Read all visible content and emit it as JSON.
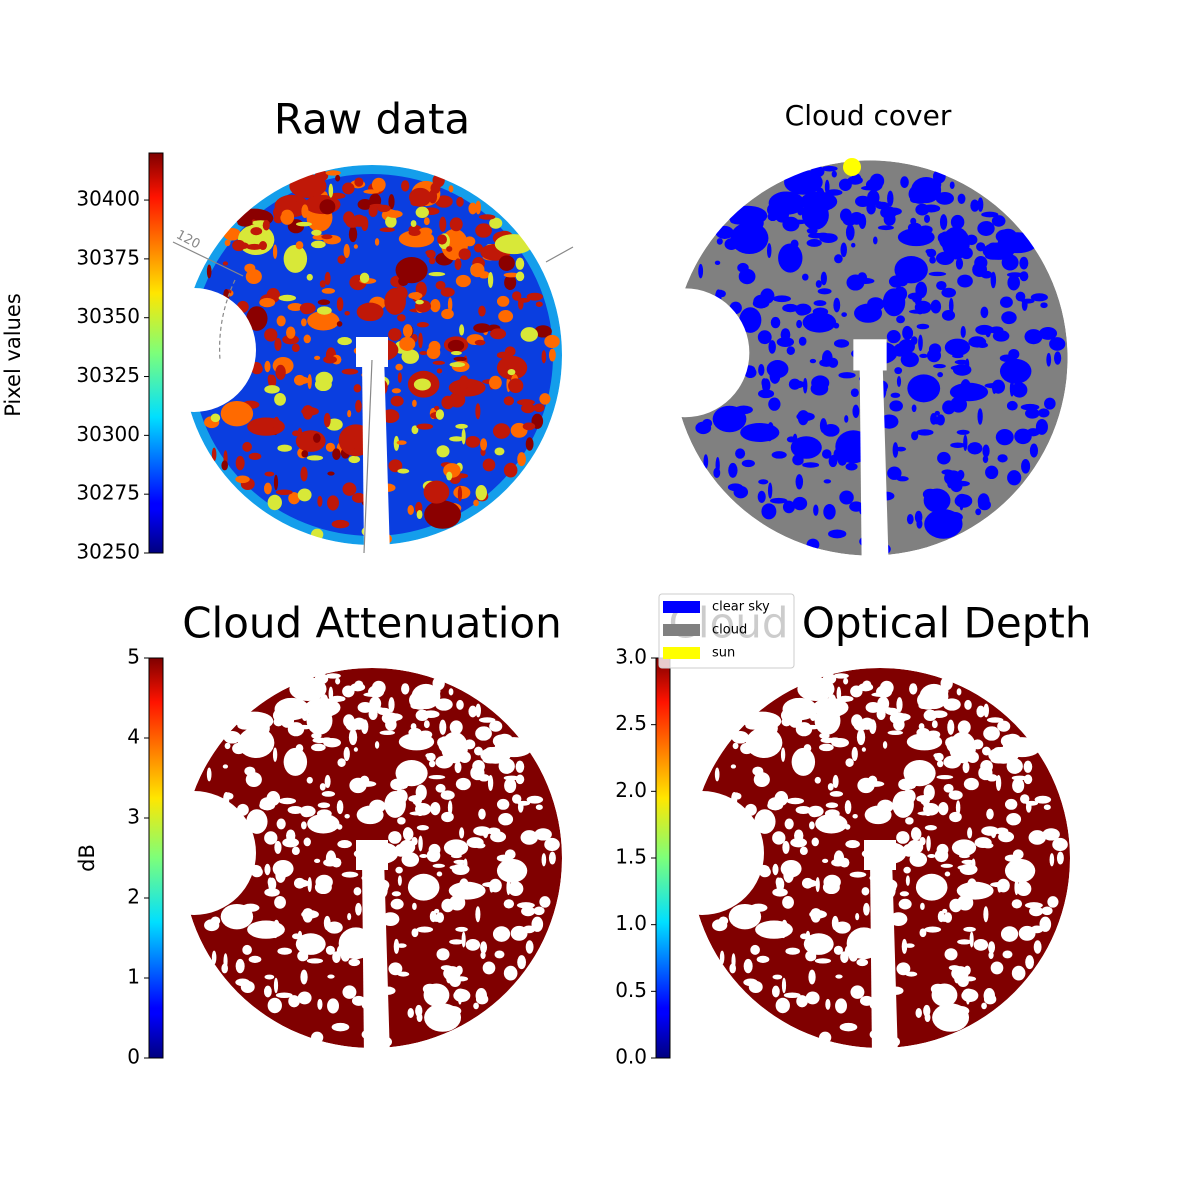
{
  "chart_data": [
    {
      "type": "image",
      "title": "Raw data",
      "colorbar_label": "Pixel values",
      "polar_label": "120",
      "ylim": [
        30250,
        30420
      ],
      "yticks": [
        30250,
        30275,
        30300,
        30325,
        30350,
        30375,
        30400
      ]
    },
    {
      "type": "image",
      "title": "Cloud cover",
      "legend": [
        {
          "name": "clear sky",
          "color": "#0000ff"
        },
        {
          "name": "cloud",
          "color": "#808080"
        },
        {
          "name": "sun",
          "color": "#ffff00"
        }
      ]
    },
    {
      "type": "image",
      "title": "Cloud Attenuation",
      "colorbar_label": "dB",
      "ylim": [
        0,
        5
      ],
      "yticks": [
        0,
        1,
        2,
        3,
        4,
        5
      ]
    },
    {
      "type": "image",
      "title": "Cloud Optical Depth",
      "ylim": [
        0,
        3
      ],
      "yticks": [
        {
          "value": 0,
          "label": "0.0"
        },
        {
          "value": 0.5,
          "label": "0.5"
        },
        {
          "value": 1,
          "label": "1.0"
        },
        {
          "value": 1.5,
          "label": "1.5"
        },
        {
          "value": 2,
          "label": "2.0"
        },
        {
          "value": 2.5,
          "label": "2.5"
        },
        {
          "value": 3,
          "label": "3.0"
        }
      ]
    }
  ]
}
